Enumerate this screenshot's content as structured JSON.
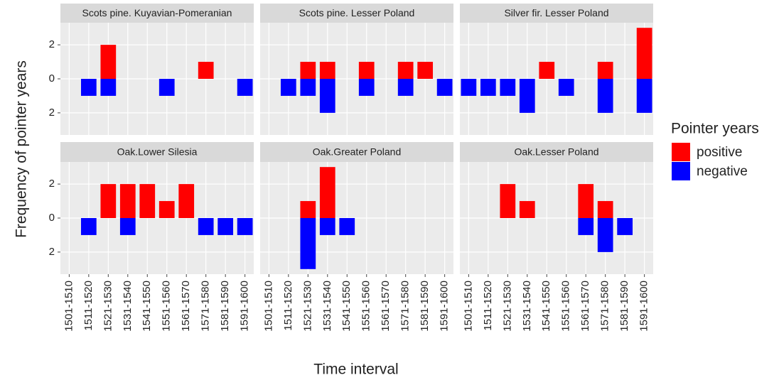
{
  "chart_data": {
    "type": "bar",
    "stacked": true,
    "xlabel": "Time interval",
    "ylabel": "Frequency of pointer years",
    "legend_title": "Pointer years",
    "legend": "right",
    "categories": [
      "1501-1510",
      "1511-1520",
      "1521-1530",
      "1531-1540",
      "1541-1550",
      "1551-1560",
      "1561-1570",
      "1571-1580",
      "1581-1590",
      "1591-1600"
    ],
    "series": [
      {
        "name": "positive",
        "color": "#ff0000"
      },
      {
        "name": "negative",
        "color": "#0000ff"
      }
    ],
    "ylim": [
      -3.3,
      3.3
    ],
    "yticks": [
      {
        "value": -2,
        "label": "2"
      },
      0,
      2
    ],
    "grid": true,
    "facets": [
      {
        "title": "Scots pine. Kuyavian-Pomeranian",
        "values": [
          [
            0,
            0,
            2,
            0,
            0,
            0,
            0,
            1,
            0,
            0
          ],
          [
            0,
            -1,
            -1,
            0,
            0,
            -1,
            0,
            0,
            0,
            -1
          ]
        ]
      },
      {
        "title": "Scots pine. Lesser Poland",
        "values": [
          [
            0,
            0,
            1,
            1,
            0,
            1,
            0,
            1,
            1,
            0
          ],
          [
            0,
            -1,
            -1,
            -2,
            0,
            -1,
            0,
            -1,
            0,
            -1
          ]
        ]
      },
      {
        "title": "Silver fir. Lesser Poland",
        "values": [
          [
            0,
            0,
            0,
            0,
            1,
            0,
            0,
            1,
            0,
            3
          ],
          [
            -1,
            -1,
            -1,
            -2,
            0,
            -1,
            0,
            -2,
            0,
            -2
          ]
        ]
      },
      {
        "title": "Oak.Lower Silesia",
        "values": [
          [
            0,
            0,
            2,
            2,
            2,
            1,
            2,
            0,
            0,
            0
          ],
          [
            0,
            -1,
            0,
            -1,
            0,
            0,
            0,
            -1,
            -1,
            -1
          ]
        ]
      },
      {
        "title": "Oak.Greater Poland",
        "values": [
          [
            0,
            0,
            1,
            3,
            0,
            0,
            0,
            0,
            0,
            0
          ],
          [
            0,
            0,
            -3,
            -1,
            -1,
            0,
            0,
            0,
            0,
            0
          ]
        ]
      },
      {
        "title": "Oak.Lesser Poland",
        "values": [
          [
            0,
            0,
            2,
            1,
            0,
            0,
            2,
            1,
            0,
            0
          ],
          [
            0,
            0,
            0,
            0,
            0,
            0,
            -1,
            -2,
            -1,
            0
          ]
        ]
      }
    ]
  }
}
